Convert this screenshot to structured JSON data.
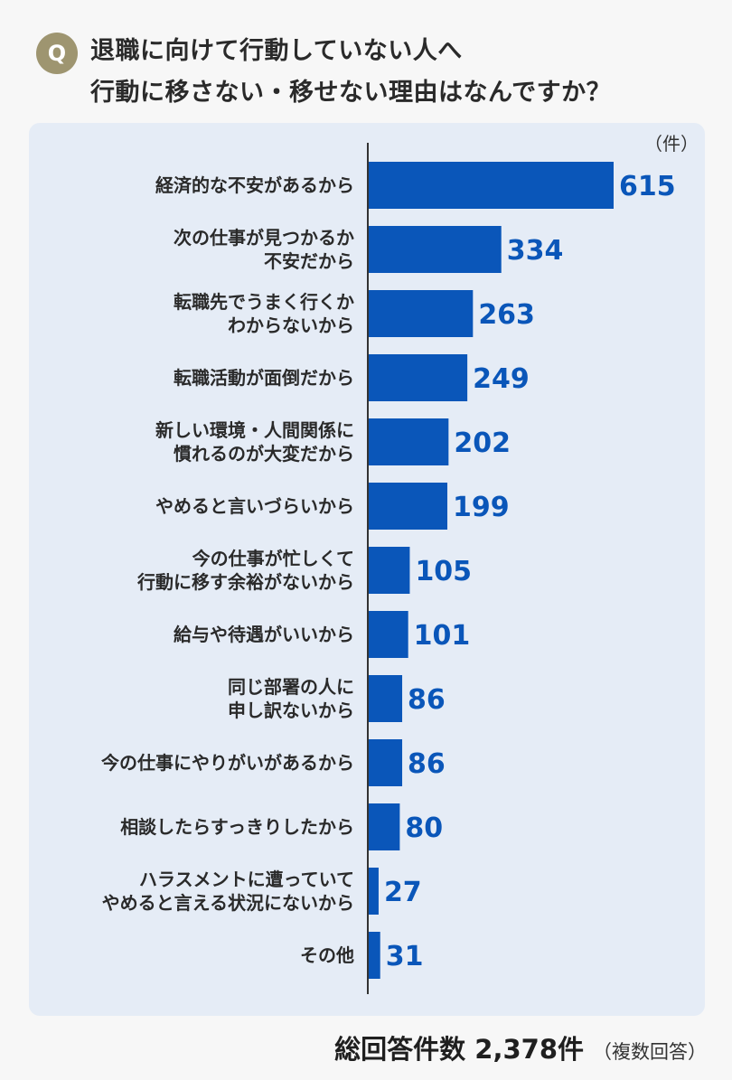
{
  "header": {
    "badge": "Q",
    "title_line1": "退職に向けて行動していない人へ",
    "title_line2": "行動に移さない・移せない理由はなんですか？"
  },
  "colors": {
    "bar": "#0a56b9",
    "value_text": "#0a56b9",
    "panel_bg": "#e5ecf6",
    "badge": "#9e9570"
  },
  "chart_data": {
    "type": "bar",
    "orientation": "horizontal",
    "unit_label": "（件）",
    "categories": [
      [
        "経済的な不安があるから"
      ],
      [
        "次の仕事が見つかるか",
        "不安だから"
      ],
      [
        "転職先でうまく行くか",
        "わからないから"
      ],
      [
        "転職活動が面倒だから"
      ],
      [
        "新しい環境・人間関係に",
        "慣れるのが大変だから"
      ],
      [
        "やめると言いづらいから"
      ],
      [
        "今の仕事が忙しくて",
        "行動に移す余裕がないから"
      ],
      [
        "給与や待遇がいいから"
      ],
      [
        "同じ部署の人に",
        "申し訳ないから"
      ],
      [
        "今の仕事にやりがいがあるから"
      ],
      [
        "相談したらすっきりしたから"
      ],
      [
        "ハラスメントに遭っていて",
        "やめると言える状況にないから"
      ],
      [
        "その他"
      ]
    ],
    "values": [
      615,
      334,
      263,
      249,
      202,
      199,
      105,
      101,
      86,
      86,
      80,
      27,
      31
    ],
    "xlim": [
      0,
      615
    ],
    "grid": false,
    "legend": "none"
  },
  "footer": {
    "total": "総回答件数 2,378件",
    "note": "（複数回答）"
  }
}
